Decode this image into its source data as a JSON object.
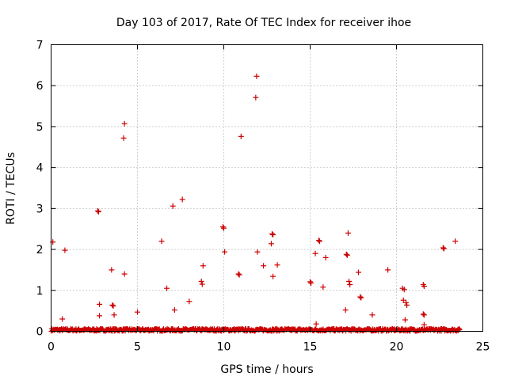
{
  "chart_data": {
    "type": "scatter",
    "title": "Day 103 of 2017, Rate Of TEC Index for receiver ihoe",
    "xlabel": "GPS time / hours",
    "ylabel": "ROTI / TECUs",
    "xlim": [
      0,
      25
    ],
    "ylim": [
      0,
      7
    ],
    "xticks": [
      "0",
      "5",
      "10",
      "15",
      "20",
      "25"
    ],
    "yticks": [
      "0",
      "1",
      "2",
      "3",
      "4",
      "5",
      "6",
      "7"
    ],
    "grid": true,
    "series": [
      {
        "name": "ROTI",
        "color": "#cc0000",
        "marker": "plus",
        "points": [
          [
            0.1,
            2.18
          ],
          [
            0.65,
            0.3
          ],
          [
            0.8,
            1.98
          ],
          [
            2.7,
            2.94
          ],
          [
            2.75,
            2.92
          ],
          [
            2.8,
            0.66
          ],
          [
            2.8,
            0.38
          ],
          [
            3.5,
            1.5
          ],
          [
            3.55,
            0.64
          ],
          [
            3.6,
            0.62
          ],
          [
            3.65,
            0.4
          ],
          [
            4.2,
            4.72
          ],
          [
            4.25,
            5.07
          ],
          [
            4.25,
            1.4
          ],
          [
            5.0,
            0.47
          ],
          [
            6.4,
            2.2
          ],
          [
            6.7,
            1.05
          ],
          [
            7.05,
            3.06
          ],
          [
            7.15,
            0.52
          ],
          [
            7.6,
            3.22
          ],
          [
            8.0,
            0.73
          ],
          [
            8.7,
            1.22
          ],
          [
            8.75,
            1.15
          ],
          [
            8.8,
            1.6
          ],
          [
            9.95,
            2.55
          ],
          [
            10.0,
            2.52
          ],
          [
            10.05,
            1.94
          ],
          [
            10.85,
            1.4
          ],
          [
            10.9,
            1.38
          ],
          [
            11.0,
            4.76
          ],
          [
            11.85,
            5.71
          ],
          [
            11.9,
            6.23
          ],
          [
            11.95,
            1.94
          ],
          [
            12.3,
            1.6
          ],
          [
            12.75,
            2.14
          ],
          [
            12.8,
            2.38
          ],
          [
            12.85,
            2.36
          ],
          [
            12.85,
            1.34
          ],
          [
            13.1,
            1.62
          ],
          [
            15.0,
            1.21
          ],
          [
            15.05,
            1.18
          ],
          [
            15.3,
            1.9
          ],
          [
            15.35,
            0.18
          ],
          [
            15.5,
            2.22
          ],
          [
            15.55,
            2.2
          ],
          [
            15.75,
            1.08
          ],
          [
            15.9,
            1.8
          ],
          [
            17.05,
            0.52
          ],
          [
            17.1,
            1.88
          ],
          [
            17.15,
            1.86
          ],
          [
            17.2,
            2.4
          ],
          [
            17.25,
            1.22
          ],
          [
            17.3,
            1.14
          ],
          [
            17.8,
            1.44
          ],
          [
            17.9,
            0.84
          ],
          [
            17.95,
            0.82
          ],
          [
            18.6,
            0.4
          ],
          [
            19.5,
            1.5
          ],
          [
            20.35,
            1.05
          ],
          [
            20.4,
            0.76
          ],
          [
            20.45,
            1.02
          ],
          [
            20.5,
            0.28
          ],
          [
            20.55,
            0.7
          ],
          [
            20.6,
            0.64
          ],
          [
            21.55,
            1.14
          ],
          [
            21.6,
            1.1
          ],
          [
            21.55,
            0.42
          ],
          [
            21.6,
            0.4
          ],
          [
            21.6,
            0.16
          ],
          [
            22.7,
            2.04
          ],
          [
            22.75,
            2.02
          ],
          [
            23.4,
            2.2
          ]
        ]
      }
    ],
    "baseline_band": {
      "from_hour": 0,
      "to_hour": 23.7,
      "roti_min": 0.0,
      "roti_max": 0.07
    }
  }
}
